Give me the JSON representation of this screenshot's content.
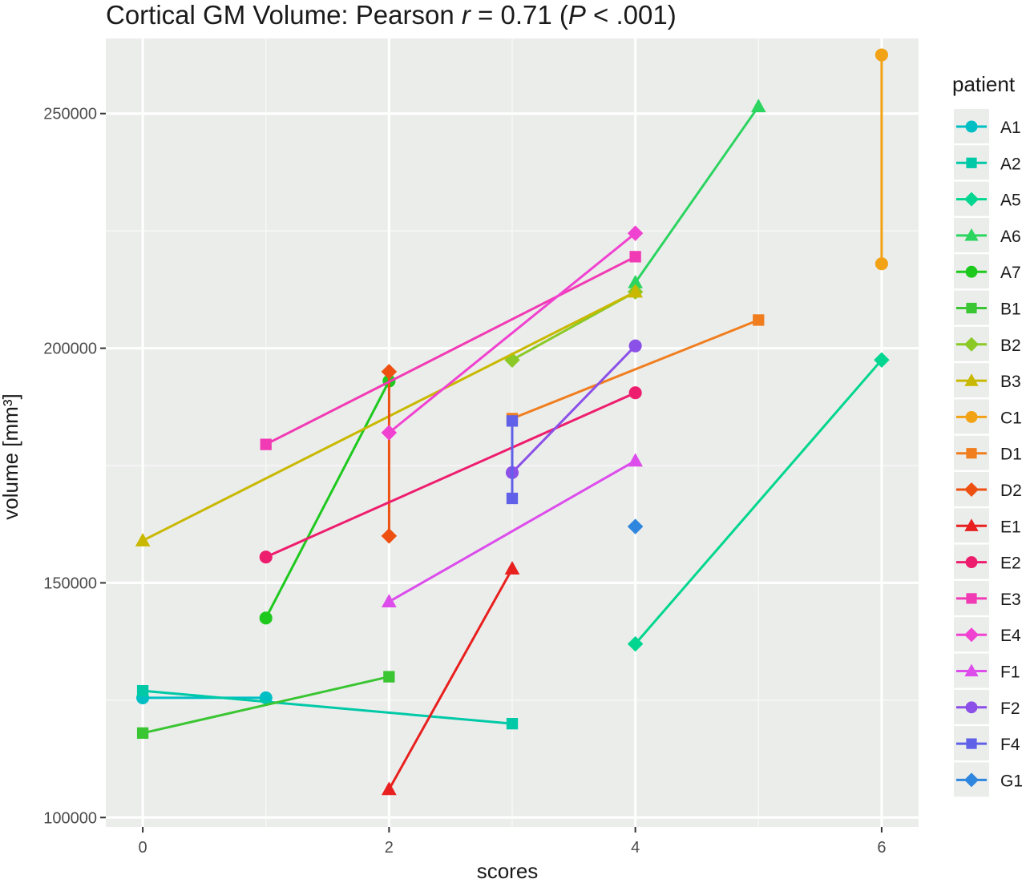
{
  "title": {
    "prefix": "Cortical GM Volume: ",
    "r_word": "Pearson ",
    "r_symbol": "r",
    "r_value": " = 0.71 (",
    "p_symbol": "P",
    "p_value": " < .001)"
  },
  "chart_data": {
    "type": "line",
    "xlabel": "scores",
    "ylabel": "volume [mm³]",
    "xlim": [
      -0.3,
      6.3
    ],
    "ylim": [
      98000,
      266000
    ],
    "x_ticks": [
      0,
      2,
      4,
      6
    ],
    "y_ticks": [
      100000,
      150000,
      200000,
      250000
    ],
    "y_tick_labels": [
      "100000",
      "150000",
      "200000",
      "250000"
    ],
    "grid": true,
    "legend_title": "patient",
    "legend_position": "right",
    "series": [
      {
        "name": "A1",
        "color": "#00BFC4",
        "marker": "circle",
        "points": [
          [
            0,
            125500
          ],
          [
            1,
            125500
          ]
        ]
      },
      {
        "name": "A2",
        "color": "#00C9A7",
        "marker": "square",
        "points": [
          [
            0,
            127000
          ],
          [
            3,
            120000
          ]
        ]
      },
      {
        "name": "A5",
        "color": "#00D68F",
        "marker": "diamond",
        "points": [
          [
            4,
            137000
          ],
          [
            6,
            197500
          ]
        ]
      },
      {
        "name": "A6",
        "color": "#2CD460",
        "marker": "triangle",
        "points": [
          [
            4,
            214000
          ],
          [
            5,
            251500
          ]
        ]
      },
      {
        "name": "A7",
        "color": "#1EC91E",
        "marker": "circle",
        "points": [
          [
            1,
            142500
          ],
          [
            2,
            193000
          ]
        ]
      },
      {
        "name": "B1",
        "color": "#3AC532",
        "marker": "square",
        "points": [
          [
            0,
            118000
          ],
          [
            2,
            130000
          ]
        ]
      },
      {
        "name": "B2",
        "color": "#8AC926",
        "marker": "diamond",
        "points": [
          [
            3,
            197500
          ],
          [
            4,
            212000
          ]
        ]
      },
      {
        "name": "B3",
        "color": "#C9B800",
        "marker": "triangle",
        "points": [
          [
            0,
            159000
          ],
          [
            4,
            212000
          ]
        ]
      },
      {
        "name": "C1",
        "color": "#F2A215",
        "marker": "circle",
        "points": [
          [
            6,
            218000
          ],
          [
            6,
            262500
          ]
        ]
      },
      {
        "name": "D1",
        "color": "#F07E1F",
        "marker": "square",
        "points": [
          [
            3,
            185000
          ],
          [
            5,
            206000
          ]
        ]
      },
      {
        "name": "D2",
        "color": "#EE5012",
        "marker": "diamond",
        "points": [
          [
            2,
            160000
          ],
          [
            2,
            195000
          ]
        ]
      },
      {
        "name": "E1",
        "color": "#E8201F",
        "marker": "triangle",
        "points": [
          [
            2,
            106000
          ],
          [
            3,
            153000
          ]
        ]
      },
      {
        "name": "E2",
        "color": "#EE1E6E",
        "marker": "circle",
        "points": [
          [
            1,
            155500
          ],
          [
            4,
            190500
          ]
        ]
      },
      {
        "name": "E3",
        "color": "#F13BB4",
        "marker": "square",
        "points": [
          [
            1,
            179500
          ],
          [
            4,
            219500
          ]
        ]
      },
      {
        "name": "E4",
        "color": "#F042D0",
        "marker": "diamond",
        "points": [
          [
            2,
            182000
          ],
          [
            4,
            224500
          ]
        ]
      },
      {
        "name": "F1",
        "color": "#DC4DEB",
        "marker": "triangle",
        "points": [
          [
            2,
            146000
          ],
          [
            4,
            176000
          ]
        ]
      },
      {
        "name": "F2",
        "color": "#8B50E8",
        "marker": "circle",
        "points": [
          [
            3,
            173500
          ],
          [
            4,
            200500
          ]
        ]
      },
      {
        "name": "F4",
        "color": "#6060E8",
        "marker": "square",
        "points": [
          [
            3,
            168000
          ],
          [
            3,
            184500
          ]
        ]
      },
      {
        "name": "G1",
        "color": "#2E86DE",
        "marker": "diamond",
        "points": [
          [
            4,
            162000
          ]
        ]
      }
    ]
  }
}
